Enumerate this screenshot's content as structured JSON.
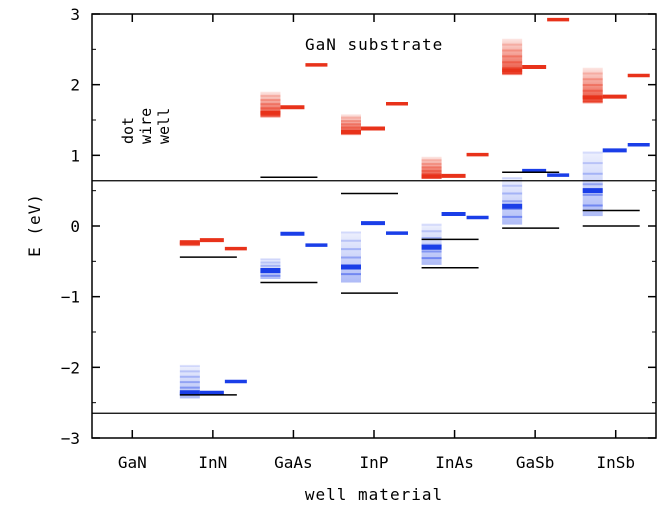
{
  "chart_data": {
    "type": "scatter",
    "title": "",
    "annotation": "GaN substrate",
    "xlabel": "well material",
    "ylabel": "E  (eV)",
    "categories": [
      "GaN",
      "InN",
      "GaAs",
      "InP",
      "InAs",
      "GaSb",
      "InSb"
    ],
    "ylim": [
      -3,
      3
    ],
    "yticks": [
      -3,
      -2,
      -1,
      0,
      1,
      2,
      3
    ],
    "legend_entries": [
      "dot",
      "wire",
      "well"
    ],
    "grid": false,
    "reference_lines": [
      {
        "y": 0.64,
        "colors": "#000000"
      },
      {
        "y": -2.65,
        "colors": "#000000"
      }
    ],
    "colors": {
      "conduction": "#e8321a",
      "valence": "#1a3ee8",
      "line": "#000000"
    },
    "series": [
      {
        "category": "InN",
        "dot_conduction": {
          "top": -0.2,
          "bottom": -0.27,
          "level": -0.23
        },
        "wire_conduction": -0.2,
        "well_conduction": -0.32,
        "well_black": -0.44,
        "dot_valence": {
          "top": -1.98,
          "bottom": -2.44,
          "level": -2.36
        },
        "wire_valence": -2.36,
        "well_valence": -2.2,
        "wire_black": -2.39
      },
      {
        "category": "GaAs",
        "dot_conduction": {
          "top": 1.9,
          "bottom": 1.55,
          "level": 1.6
        },
        "wire_conduction": 1.68,
        "well_conduction": 2.28,
        "well_black": 0.69,
        "dot_valence": {
          "top": -0.47,
          "bottom": -0.75,
          "level": -0.63
        },
        "wire_valence": -0.11,
        "well_valence": -0.27,
        "wire_black": -0.8
      },
      {
        "category": "InP",
        "dot_conduction": {
          "top": 1.58,
          "bottom": 1.3,
          "level": 1.33
        },
        "wire_conduction": 1.38,
        "well_conduction": 1.73,
        "well_black": 0.46,
        "dot_valence": {
          "top": -0.09,
          "bottom": -0.8,
          "level": -0.58
        },
        "wire_valence": 0.04,
        "well_valence": -0.1,
        "wire_black": -0.95
      },
      {
        "category": "InAs",
        "dot_conduction": {
          "top": 0.98,
          "bottom": 0.68,
          "level": 0.7
        },
        "wire_conduction": 0.71,
        "well_conduction": 1.01,
        "well_black": -0.19,
        "dot_valence": {
          "top": 0.02,
          "bottom": -0.55,
          "level": -0.3
        },
        "wire_valence": 0.17,
        "well_valence": 0.12,
        "wire_black": -0.59
      },
      {
        "category": "GaSb",
        "dot_conduction": {
          "top": 2.65,
          "bottom": 2.15,
          "level": 2.2
        },
        "wire_conduction": 2.25,
        "well_conduction": 2.92,
        "well_black": 0.76,
        "dot_valence": {
          "top": 0.68,
          "bottom": 0.02,
          "level": 0.28
        },
        "wire_valence": 0.78,
        "well_valence": 0.72,
        "wire_black": -0.03
      },
      {
        "category": "InSb",
        "dot_conduction": {
          "top": 2.24,
          "bottom": 1.75,
          "level": 1.82
        },
        "wire_conduction": 1.83,
        "well_conduction": 2.13,
        "well_black": 0.22,
        "dot_valence": {
          "top": 1.04,
          "bottom": 0.14,
          "level": 0.5
        },
        "wire_valence": 1.07,
        "well_valence": 1.15,
        "wire_black": 0.0
      }
    ]
  }
}
